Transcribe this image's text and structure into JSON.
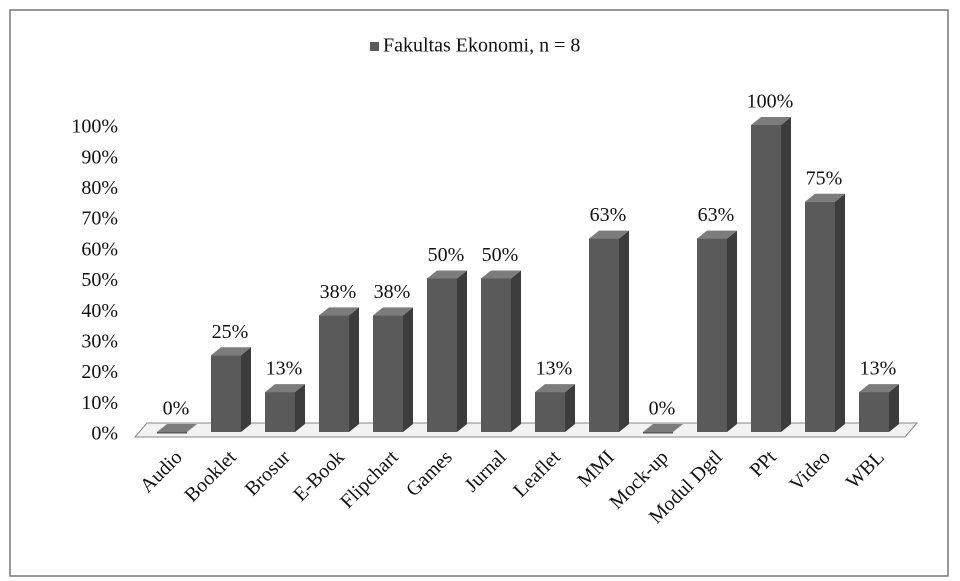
{
  "chart_data": {
    "type": "bar3d",
    "categories": [
      "Audio",
      "Booklet",
      "Brosur",
      "E-Book",
      "Flipchart",
      "Games",
      "Jurnal",
      "Leaflet",
      "MMI",
      "Mock-up",
      "Modul Dgtl",
      "PPt",
      "Video",
      "WBL"
    ],
    "series": [
      {
        "name": "Fakultas Ekonomi, n = 8",
        "color": "#5a5a5a",
        "values": [
          0,
          25,
          13,
          38,
          38,
          50,
          50,
          13,
          63,
          0,
          63,
          100,
          75,
          13
        ],
        "value_labels": [
          "0%",
          "25%",
          "13%",
          "38%",
          "38%",
          "50%",
          "50%",
          "13%",
          "63%",
          "0%",
          "63%",
          "100%",
          "75%",
          "13%"
        ]
      }
    ],
    "ylim": [
      0,
      100
    ],
    "yticks": [
      {
        "value": 0,
        "label": "0%"
      },
      {
        "value": 10,
        "label": "10%"
      },
      {
        "value": 20,
        "label": "20%"
      },
      {
        "value": 30,
        "label": "30%"
      },
      {
        "value": 40,
        "label": "40%"
      },
      {
        "value": 50,
        "label": "50%"
      },
      {
        "value": 60,
        "label": "60%"
      },
      {
        "value": 70,
        "label": "70%"
      },
      {
        "value": 80,
        "label": "80%"
      },
      {
        "value": 90,
        "label": "90%"
      },
      {
        "value": 100,
        "label": "100%"
      }
    ],
    "legend": "top",
    "grid": false
  }
}
